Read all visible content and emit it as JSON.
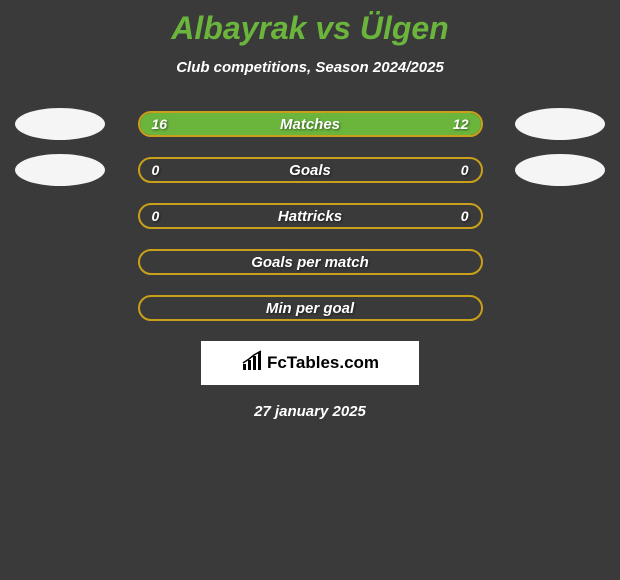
{
  "title": "Albayrak vs Ülgen",
  "subtitle": "Club competitions, Season 2024/2025",
  "colors": {
    "background": "#3a3a3a",
    "accent_green": "#6bb53d",
    "accent_gold": "#c9a01a",
    "text_white": "#ffffff",
    "avatar_bg": "#f5f5f5"
  },
  "stats": [
    {
      "label": "Matches",
      "left_value": "16",
      "right_value": "12",
      "left_fill_pct": 57,
      "right_fill_pct": 43,
      "show_avatars": true,
      "show_full_fill": true
    },
    {
      "label": "Goals",
      "left_value": "0",
      "right_value": "0",
      "left_fill_pct": 0,
      "right_fill_pct": 0,
      "show_avatars": true,
      "show_full_fill": false
    },
    {
      "label": "Hattricks",
      "left_value": "0",
      "right_value": "0",
      "left_fill_pct": 0,
      "right_fill_pct": 0,
      "show_avatars": false,
      "show_full_fill": false
    },
    {
      "label": "Goals per match",
      "left_value": "",
      "right_value": "",
      "left_fill_pct": 0,
      "right_fill_pct": 0,
      "show_avatars": false,
      "show_full_fill": false
    },
    {
      "label": "Min per goal",
      "left_value": "",
      "right_value": "",
      "left_fill_pct": 0,
      "right_fill_pct": 0,
      "show_avatars": false,
      "show_full_fill": false
    }
  ],
  "logo": {
    "text": "FcTables.com"
  },
  "date": "27 january 2025"
}
